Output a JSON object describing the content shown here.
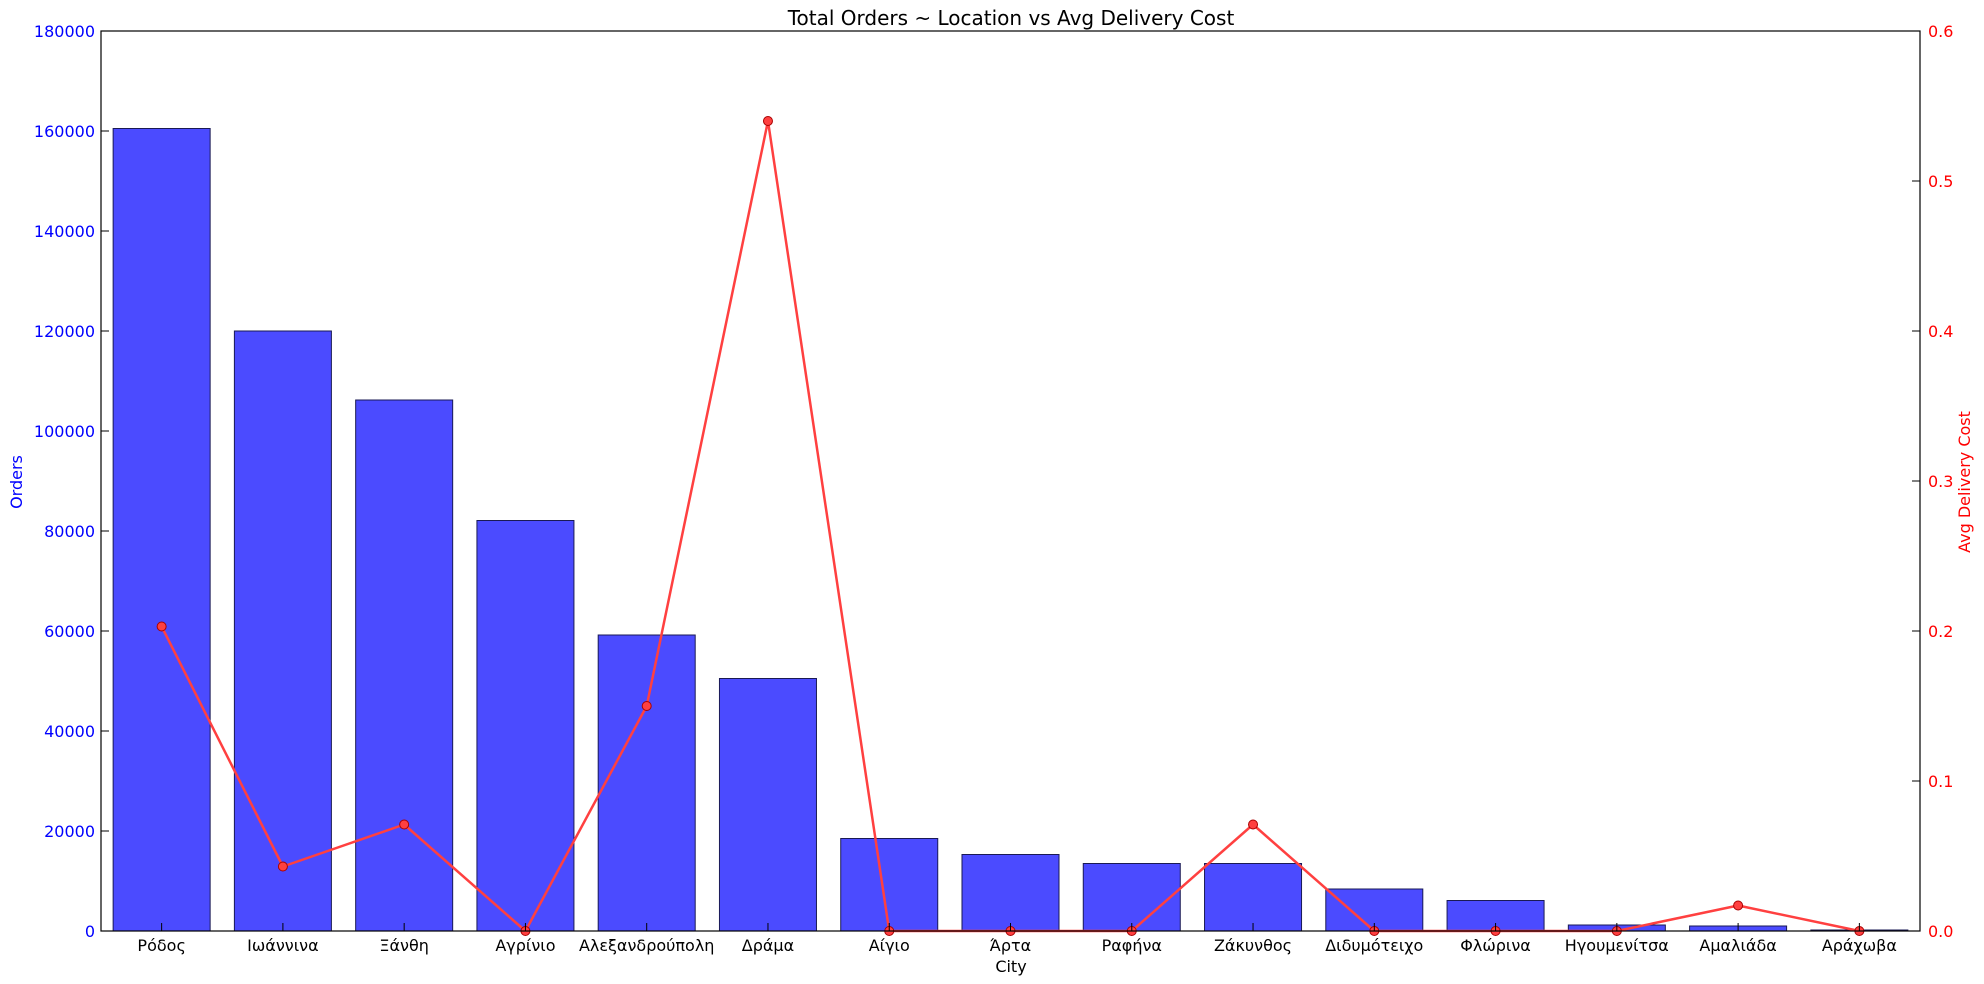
{
  "chart_data": {
    "type": "bar",
    "title": "Total Orders ~ Location vs Avg Delivery Cost",
    "xlabel": "City",
    "ylabel": "Orders",
    "y2label": "Avg Delivery Cost",
    "categories": [
      "Ρόδος",
      "Ιωάννινα",
      "Ξάνθη",
      "Αγρίνιο",
      "Αλεξανδρούπολη",
      "Δράμα",
      "Αίγιο",
      "Άρτα",
      "Ραφήνα",
      "Ζάκυνθος",
      "Διδυμότειχο",
      "Φλώρινα",
      "Ηγουμενίτσα",
      "Αμαλιάδα",
      "Αράχωβα"
    ],
    "ylim": [
      0,
      180000
    ],
    "y2lim": [
      0,
      0.6
    ],
    "yticks": [
      0,
      20000,
      40000,
      60000,
      80000,
      100000,
      120000,
      140000,
      160000,
      180000
    ],
    "y2ticks": [
      "0.0",
      "0.1",
      "0.2",
      "0.3",
      "0.4",
      "0.5",
      "0.6"
    ],
    "grid": false,
    "series": [
      {
        "kind": "bar",
        "axis": "left",
        "values": [
          160500,
          120000,
          106200,
          82100,
          59200,
          50500,
          18500,
          15300,
          13500,
          13500,
          8400,
          6100,
          1200,
          1000,
          200
        ]
      },
      {
        "kind": "line",
        "axis": "right",
        "values": [
          0.203,
          0.043,
          0.071,
          0.0,
          0.15,
          0.54,
          0.0,
          0.0,
          0.0,
          0.071,
          0.0,
          0.0,
          0.0,
          0.017,
          0.0
        ]
      }
    ],
    "colors": {
      "bar": "#4b4bff",
      "bar_edge": "#1a1a55",
      "line": "#ff4040",
      "left_axis": "#0000ff",
      "right_axis": "#ff0000"
    }
  }
}
